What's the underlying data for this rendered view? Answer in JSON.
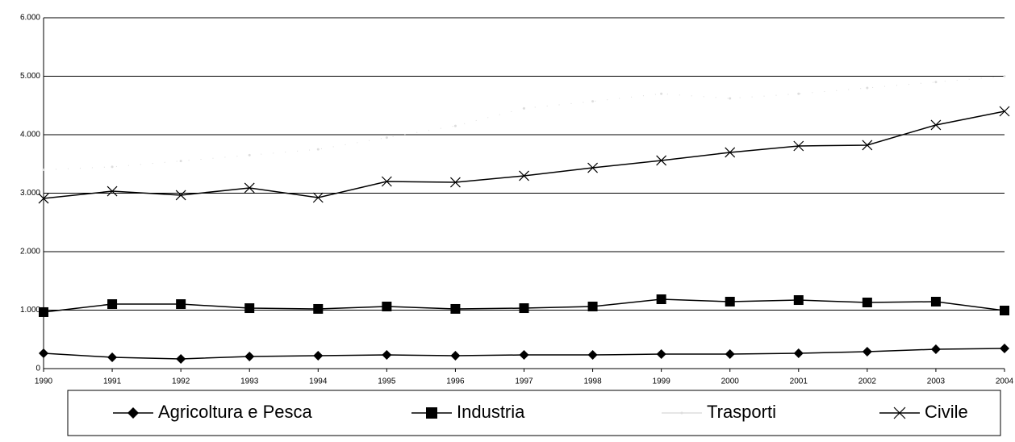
{
  "chart_data": {
    "type": "line",
    "categories": [
      "1990",
      "1991",
      "1992",
      "1993",
      "1994",
      "1995",
      "1996",
      "1997",
      "1998",
      "1999",
      "2000",
      "2001",
      "2002",
      "2003",
      "2004"
    ],
    "series": [
      {
        "name": "Agricoltura e Pesca",
        "color": "#000000",
        "marker": "diamond",
        "values": [
          262,
          193,
          166,
          207,
          221,
          234,
          221,
          234,
          234,
          248,
          248,
          262,
          290,
          331,
          345
        ]
      },
      {
        "name": "Industria",
        "color": "#000000",
        "marker": "square",
        "values": [
          966,
          1103,
          1103,
          1034,
          1021,
          1062,
          1021,
          1034,
          1062,
          1186,
          1145,
          1172,
          1131,
          1145,
          993
        ]
      },
      {
        "name": "Trasporti",
        "color": "#dddddd",
        "marker": "none",
        "values": [
          3400,
          3450,
          3550,
          3650,
          3750,
          3950,
          4150,
          4450,
          4570,
          4700,
          4620,
          4700,
          4800,
          4900,
          5000
        ]
      },
      {
        "name": "Civile",
        "color": "#000000",
        "marker": "x",
        "values": [
          2910,
          3034,
          2966,
          3090,
          2924,
          3200,
          3186,
          3297,
          3434,
          3559,
          3697,
          3807,
          3821,
          4166,
          4400
        ]
      }
    ],
    "ylim": [
      0,
      6000
    ],
    "yticks": [
      0,
      {
        "value": 1000,
        "label": "1.000"
      },
      {
        "value": 2000,
        "label": "2.000"
      },
      {
        "value": 3000,
        "label": "3.000"
      },
      {
        "value": 4000,
        "label": "4.000"
      },
      {
        "value": 5000,
        "label": "5.000"
      },
      {
        "value": 6000,
        "label": "6.000"
      }
    ],
    "grid": true,
    "legend": "bottom"
  }
}
